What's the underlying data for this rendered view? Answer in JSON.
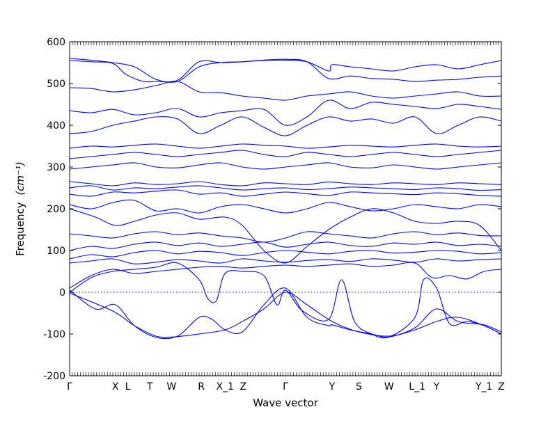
{
  "chart_data": {
    "type": "line",
    "title": "",
    "xlabel": "Wave vector",
    "ylabel": "Frequency",
    "ylabel_unit": "(cm⁻¹)",
    "ylim": [
      -200,
      600
    ],
    "yticks": [
      -200,
      -100,
      0,
      100,
      200,
      300,
      400,
      500,
      600
    ],
    "grid": false,
    "line_color": "#0000ff",
    "zero_line": true,
    "high_symmetry_points": [
      {
        "label": "Γ",
        "x": 0.0
      },
      {
        "label": "X",
        "x": 1.06
      },
      {
        "label": "L",
        "x": 1.35
      },
      {
        "label": "T",
        "x": 1.86
      },
      {
        "label": "W",
        "x": 2.36
      },
      {
        "label": "R",
        "x": 3.05
      },
      {
        "label": "X_1",
        "x": 3.6
      },
      {
        "label": "Z",
        "x": 4.02
      },
      {
        "label": "Γ",
        "x": 5.0
      },
      {
        "label": "Y",
        "x": 6.08
      },
      {
        "label": "S",
        "x": 6.7
      },
      {
        "label": "W",
        "x": 7.4
      },
      {
        "label": "L_1",
        "x": 8.05
      },
      {
        "label": "Y",
        "x": 8.5
      },
      {
        "label": "Y_1",
        "x": 9.6
      },
      {
        "label": "Z",
        "x": 10.0
      }
    ],
    "xlim": [
      0,
      10
    ],
    "series": [
      {
        "x": [
          0,
          1,
          1.5,
          2,
          2.4,
          3,
          3.6,
          4,
          4.5,
          5,
          5.5,
          6.08,
          6.7,
          7.4,
          8,
          8.5,
          9,
          9.6,
          10
        ],
        "y": [
          -2,
          -45,
          -80,
          -105,
          -107,
          -100,
          -90,
          -70,
          -40,
          0,
          -30,
          -70,
          -95,
          -105,
          -90,
          -70,
          -60,
          -80,
          -100
        ]
      },
      {
        "x": [
          0,
          0.6,
          1.06,
          1.5,
          2,
          2.5,
          3,
          3.3,
          3.6,
          4,
          4.5,
          5,
          5.5,
          6,
          6.08,
          6.5,
          7,
          7.4,
          8,
          8.5,
          9,
          9.6,
          10
        ],
        "y": [
          5,
          -40,
          -30,
          -80,
          -108,
          -105,
          -60,
          -65,
          -90,
          -95,
          -30,
          10,
          -60,
          -80,
          -78,
          -90,
          -100,
          -107,
          -85,
          -40,
          -70,
          -78,
          -95
        ]
      },
      {
        "x": [
          0,
          0.5,
          1,
          1.5,
          2,
          2.5,
          3,
          3.2,
          3.4,
          3.6,
          4,
          4.5,
          4.8,
          5,
          5.4,
          6,
          6.3,
          6.6,
          7,
          7.4,
          8,
          8.2,
          8.5,
          8.8,
          9.2,
          9.6,
          10
        ],
        "y": [
          0,
          35,
          50,
          55,
          60,
          70,
          30,
          -15,
          -20,
          45,
          50,
          40,
          -30,
          5,
          -45,
          -65,
          30,
          -70,
          -100,
          -107,
          -60,
          30,
          10,
          -75,
          -70,
          -80,
          -100
        ]
      },
      {
        "x": [
          0,
          0.5,
          1,
          1.5,
          2,
          2.5,
          3,
          3.5,
          4,
          4.5,
          5,
          5.5,
          6,
          6.5,
          7,
          7.5,
          8,
          8.4,
          8.8,
          9.2,
          9.6,
          10
        ],
        "y": [
          10,
          40,
          55,
          45,
          50,
          55,
          60,
          62,
          58,
          62,
          65,
          62,
          65,
          68,
          62,
          65,
          70,
          35,
          40,
          32,
          50,
          55
        ]
      },
      {
        "x": [
          0,
          0.5,
          1,
          1.5,
          2,
          2.5,
          3,
          3.5,
          4,
          4.5,
          5,
          5.5,
          6,
          6.5,
          7,
          7.5,
          8,
          8.5,
          9,
          9.5,
          10
        ],
        "y": [
          70,
          75,
          80,
          68,
          72,
          78,
          75,
          70,
          80,
          75,
          72,
          76,
          78,
          74,
          80,
          77,
          72,
          80,
          75,
          78,
          80
        ]
      },
      {
        "x": [
          0,
          0.5,
          1,
          1.5,
          2,
          2.5,
          3,
          3.5,
          4,
          4.5,
          5,
          5.5,
          6,
          6.5,
          7,
          7.5,
          8,
          8.5,
          9,
          9.5,
          10
        ],
        "y": [
          80,
          90,
          85,
          95,
          100,
          92,
          98,
          95,
          88,
          95,
          100,
          96,
          92,
          98,
          100,
          94,
          96,
          100,
          98,
          92,
          95
        ]
      },
      {
        "x": [
          0,
          0.5,
          1,
          1.5,
          2,
          2.5,
          3,
          3.5,
          4,
          4.5,
          5,
          5.5,
          6,
          6.5,
          7,
          7.5,
          8,
          8.5,
          9,
          9.5,
          10
        ],
        "y": [
          100,
          110,
          105,
          115,
          120,
          112,
          118,
          110,
          115,
          120,
          108,
          115,
          120,
          112,
          110,
          118,
          115,
          120,
          112,
          115,
          110
        ]
      },
      {
        "x": [
          0,
          0.5,
          1,
          1.5,
          2,
          2.5,
          3,
          3.5,
          4,
          4.5,
          5,
          5.5,
          6,
          6.5,
          7,
          7.5,
          8,
          8.5,
          9,
          9.5,
          10
        ],
        "y": [
          140,
          135,
          130,
          140,
          145,
          138,
          142,
          135,
          130,
          120,
          130,
          145,
          140,
          135,
          130,
          140,
          145,
          138,
          142,
          136,
          135
        ]
      },
      {
        "x": [
          0,
          0.6,
          1.06,
          1.5,
          2,
          2.5,
          3,
          3.6,
          4,
          4.5,
          5,
          5.5,
          6,
          6.5,
          7,
          7.5,
          8,
          8.5,
          9,
          9.5,
          10
        ],
        "y": [
          200,
          180,
          160,
          170,
          185,
          190,
          175,
          180,
          160,
          100,
          70,
          110,
          150,
          180,
          200,
          190,
          170,
          165,
          170,
          160,
          100
        ]
      },
      {
        "x": [
          0,
          0.5,
          1,
          1.5,
          2,
          2.5,
          3,
          3.5,
          4,
          4.5,
          5,
          5.5,
          6,
          6.5,
          7,
          7.5,
          8,
          8.5,
          9,
          9.5,
          10
        ],
        "y": [
          210,
          200,
          215,
          220,
          195,
          200,
          190,
          205,
          210,
          200,
          190,
          200,
          215,
          205,
          195,
          200,
          210,
          205,
          200,
          210,
          205
        ]
      },
      {
        "x": [
          0,
          0.5,
          1,
          1.5,
          2,
          2.5,
          3,
          3.5,
          4,
          4.5,
          5,
          5.5,
          6,
          6.5,
          7,
          7.5,
          8,
          8.5,
          9,
          9.5,
          10
        ],
        "y": [
          235,
          230,
          240,
          238,
          242,
          245,
          235,
          238,
          230,
          235,
          240,
          236,
          232,
          240,
          238,
          236,
          234,
          238,
          236,
          232,
          230
        ]
      },
      {
        "x": [
          0,
          0.5,
          1,
          1.5,
          2,
          2.5,
          3,
          3.5,
          4,
          4.5,
          5,
          5.5,
          6,
          6.5,
          7,
          7.5,
          8,
          8.5,
          9,
          9.5,
          10
        ],
        "y": [
          250,
          255,
          245,
          250,
          248,
          252,
          255,
          250,
          245,
          248,
          250,
          246,
          248,
          252,
          250,
          248,
          246,
          250,
          248,
          244,
          246
        ]
      },
      {
        "x": [
          0,
          0.5,
          1,
          1.5,
          2,
          2.5,
          3,
          3.5,
          4,
          4.5,
          5,
          5.5,
          6,
          6.5,
          7,
          7.5,
          8,
          8.5,
          9,
          9.5,
          10
        ],
        "y": [
          265,
          260,
          255,
          262,
          258,
          260,
          265,
          258,
          255,
          262,
          260,
          258,
          264,
          260,
          258,
          262,
          260,
          258,
          262,
          260,
          258
        ]
      },
      {
        "x": [
          0,
          0.5,
          1,
          1.5,
          2,
          2.5,
          3,
          3.5,
          4,
          4.5,
          5,
          5.5,
          6,
          6.5,
          7,
          7.5,
          8,
          8.5,
          9,
          9.5,
          10
        ],
        "y": [
          295,
          300,
          305,
          310,
          300,
          298,
          305,
          310,
          300,
          295,
          300,
          305,
          310,
          300,
          298,
          305,
          300,
          295,
          300,
          305,
          310
        ]
      },
      {
        "x": [
          0,
          0.5,
          1,
          1.5,
          2,
          2.5,
          3,
          3.5,
          4,
          4.5,
          5,
          5.5,
          6,
          6.5,
          7,
          7.5,
          8,
          8.5,
          9,
          9.5,
          10
        ],
        "y": [
          320,
          325,
          330,
          335,
          330,
          325,
          330,
          335,
          340,
          330,
          325,
          335,
          330,
          325,
          330,
          335,
          330,
          325,
          330,
          335,
          340
        ]
      },
      {
        "x": [
          0,
          0.5,
          1,
          1.5,
          2,
          2.5,
          3,
          3.5,
          4,
          4.5,
          5,
          5.5,
          6,
          6.5,
          7,
          7.5,
          8,
          8.5,
          9,
          9.5,
          10
        ],
        "y": [
          345,
          350,
          348,
          352,
          355,
          350,
          345,
          350,
          355,
          352,
          350,
          345,
          348,
          352,
          350,
          348,
          352,
          355,
          350,
          348,
          350
        ]
      },
      {
        "x": [
          0,
          0.5,
          1,
          1.5,
          2,
          2.5,
          3,
          3.5,
          4,
          4.5,
          5,
          5.5,
          6,
          6.5,
          7,
          7.5,
          8,
          8.5,
          9,
          9.5,
          10
        ],
        "y": [
          380,
          385,
          400,
          410,
          420,
          415,
          380,
          400,
          420,
          395,
          375,
          400,
          420,
          410,
          415,
          405,
          420,
          380,
          400,
          420,
          410
        ]
      },
      {
        "x": [
          0,
          0.5,
          1,
          1.5,
          2,
          2.5,
          3,
          3.5,
          4,
          4.5,
          5,
          5.5,
          6,
          6.5,
          7,
          7.5,
          8,
          8.5,
          9,
          9.5,
          10
        ],
        "y": [
          435,
          430,
          438,
          425,
          430,
          440,
          420,
          430,
          435,
          438,
          400,
          420,
          460,
          440,
          455,
          450,
          445,
          440,
          450,
          445,
          438
        ]
      },
      {
        "x": [
          0,
          0.5,
          1,
          1.5,
          2,
          2.5,
          3,
          3.5,
          4,
          4.5,
          5,
          5.5,
          6,
          6.5,
          7,
          7.5,
          8,
          8.5,
          9,
          9.5,
          10
        ],
        "y": [
          490,
          488,
          480,
          485,
          495,
          505,
          480,
          478,
          470,
          465,
          460,
          470,
          475,
          480,
          470,
          465,
          470,
          475,
          480,
          470,
          470
        ]
      },
      {
        "x": [
          0,
          0.5,
          1,
          1.3,
          1.7,
          2,
          2.5,
          3,
          3.5,
          4,
          4.5,
          5,
          5.5,
          6,
          6.5,
          7,
          7.5,
          8,
          8.5,
          9,
          9.5,
          10
        ],
        "y": [
          555,
          552,
          548,
          522,
          505,
          505,
          508,
          552,
          550,
          552,
          556,
          558,
          552,
          512,
          518,
          512,
          510,
          505,
          508,
          510,
          515,
          518
        ]
      },
      {
        "x": [
          0,
          0.5,
          1,
          1.5,
          2,
          2.5,
          3,
          3.5,
          4,
          4.5,
          5,
          5.5,
          6,
          6.08,
          6.5,
          7,
          7.5,
          8,
          8.5,
          9,
          9.5,
          10
        ],
        "y": [
          560,
          556,
          550,
          540,
          510,
          505,
          540,
          550,
          552,
          555,
          556,
          552,
          530,
          545,
          540,
          535,
          530,
          540,
          545,
          535,
          545,
          555
        ]
      }
    ]
  }
}
